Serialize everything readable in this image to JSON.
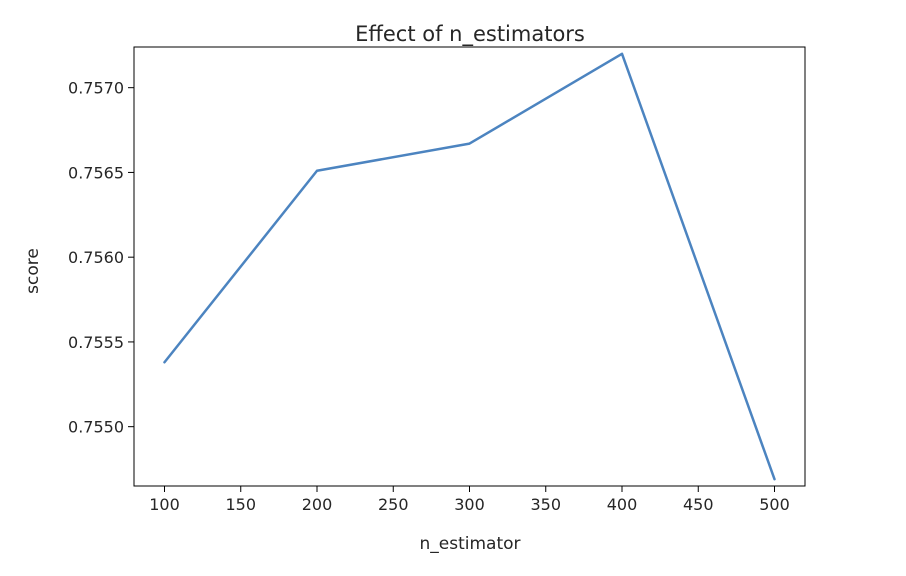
{
  "chart_data": {
    "type": "line",
    "title": "Effect of n_estimators",
    "xlabel": "n_estimator",
    "ylabel": "score",
    "x": [
      100,
      200,
      300,
      400,
      500
    ],
    "series": [
      {
        "values": [
          0.75538,
          0.75651,
          0.75667,
          0.7572,
          0.75469
        ],
        "color": "#4c84c0"
      }
    ],
    "xlim": [
      80,
      520
    ],
    "ylim": [
      0.75465,
      0.75724
    ],
    "xticks": [
      100,
      150,
      200,
      250,
      300,
      350,
      400,
      450,
      500
    ],
    "xtick_labels": [
      "100",
      "150",
      "200",
      "250",
      "300",
      "350",
      "400",
      "450",
      "500"
    ],
    "yticks": [
      0.755,
      0.7555,
      0.756,
      0.7565,
      0.757
    ],
    "ytick_labels": [
      "0.7550",
      "0.7555",
      "0.7560",
      "0.7565",
      "0.7570"
    ],
    "grid": false,
    "legend": "none"
  }
}
